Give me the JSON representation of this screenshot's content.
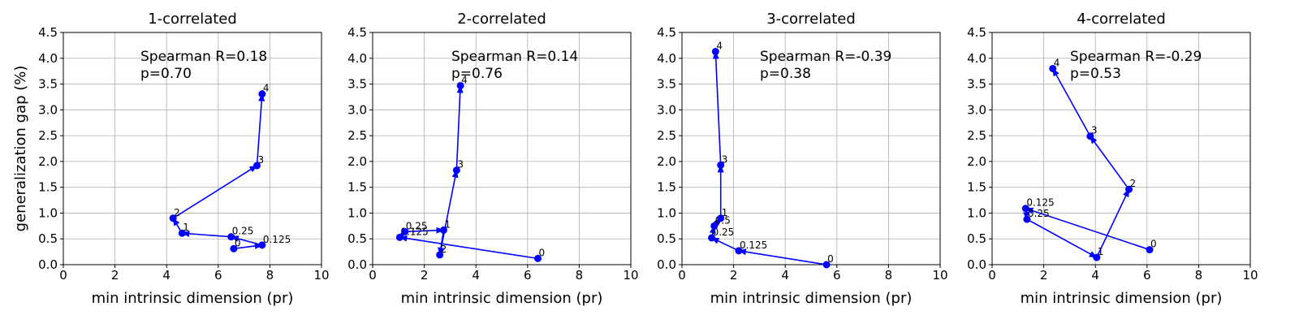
{
  "chart_data": [
    {
      "type": "line",
      "title": "1-correlated",
      "xlabel": "min intrinsic dimension (pr)",
      "ylabel": "generalization gap (%)",
      "xlim": [
        0,
        10
      ],
      "ylim": [
        0,
        4.5
      ],
      "xticks": [
        0,
        2,
        4,
        6,
        8,
        10
      ],
      "yticks": [
        0.0,
        0.5,
        1.0,
        1.5,
        2.0,
        2.5,
        3.0,
        3.5,
        4.0,
        4.5
      ],
      "grid": true,
      "annotation": [
        "Spearman R=0.18",
        "p=0.70"
      ],
      "series": [
        {
          "color": "#0000ff",
          "points": [
            {
              "label": "0",
              "x": 6.6,
              "y": 0.31
            },
            {
              "label": "0.125",
              "x": 7.7,
              "y": 0.38
            },
            {
              "label": "0.25",
              "x": 6.5,
              "y": 0.54
            },
            {
              "label": "1",
              "x": 4.6,
              "y": 0.61
            },
            {
              "label": "2",
              "x": 4.25,
              "y": 0.9
            },
            {
              "label": "3",
              "x": 7.5,
              "y": 1.92
            },
            {
              "label": "4",
              "x": 7.7,
              "y": 3.31
            }
          ]
        }
      ]
    },
    {
      "type": "line",
      "title": "2-correlated",
      "xlabel": "min intrinsic dimension (pr)",
      "ylabel": "",
      "xlim": [
        0,
        10
      ],
      "ylim": [
        0,
        4.5
      ],
      "xticks": [
        0,
        2,
        4,
        6,
        8,
        10
      ],
      "yticks": [
        0.0,
        0.5,
        1.0,
        1.5,
        2.0,
        2.5,
        3.0,
        3.5,
        4.0,
        4.5
      ],
      "grid": true,
      "annotation": [
        "Spearman R=0.14",
        "p=0.76"
      ],
      "series": [
        {
          "color": "#0000ff",
          "points": [
            {
              "label": "0",
              "x": 6.4,
              "y": 0.12
            },
            {
              "label": "0.125",
              "x": 1.05,
              "y": 0.53
            },
            {
              "label": "0.25",
              "x": 1.25,
              "y": 0.64
            },
            {
              "label": "1",
              "x": 2.75,
              "y": 0.67
            },
            {
              "label": "2",
              "x": 2.6,
              "y": 0.19
            },
            {
              "label": "3",
              "x": 3.25,
              "y": 1.83
            },
            {
              "label": "4",
              "x": 3.4,
              "y": 3.47
            }
          ]
        }
      ]
    },
    {
      "type": "line",
      "title": "3-correlated",
      "xlabel": "min intrinsic dimension (pr)",
      "ylabel": "",
      "xlim": [
        0,
        10
      ],
      "ylim": [
        0,
        4.5
      ],
      "xticks": [
        0,
        2,
        4,
        6,
        8,
        10
      ],
      "yticks": [
        0.0,
        0.5,
        1.0,
        1.5,
        2.0,
        2.5,
        3.0,
        3.5,
        4.0,
        4.5
      ],
      "grid": true,
      "annotation": [
        "Spearman R=-0.39",
        "p=0.38"
      ],
      "series": [
        {
          "color": "#0000ff",
          "points": [
            {
              "label": "0",
              "x": 5.6,
              "y": 0.0
            },
            {
              "label": "0.125",
              "x": 2.2,
              "y": 0.27
            },
            {
              "label": "0.25",
              "x": 1.15,
              "y": 0.52
            },
            {
              "label": "0.5",
              "x": 1.25,
              "y": 0.75
            },
            {
              "label": "1",
              "x": 1.5,
              "y": 0.9
            },
            {
              "label": "3",
              "x": 1.5,
              "y": 1.93
            },
            {
              "label": "4",
              "x": 1.3,
              "y": 4.13
            }
          ]
        }
      ]
    },
    {
      "type": "line",
      "title": "4-correlated",
      "xlabel": "min intrinsic dimension (pr)",
      "ylabel": "",
      "xlim": [
        0,
        10
      ],
      "ylim": [
        0,
        4.5
      ],
      "xticks": [
        0,
        2,
        4,
        6,
        8,
        10
      ],
      "yticks": [
        0.0,
        0.5,
        1.0,
        1.5,
        2.0,
        2.5,
        3.0,
        3.5,
        4.0,
        4.5
      ],
      "grid": true,
      "annotation": [
        "Spearman R=-0.29",
        "p=0.53"
      ],
      "series": [
        {
          "color": "#0000ff",
          "points": [
            {
              "label": "0",
              "x": 6.1,
              "y": 0.29
            },
            {
              "label": "0.125",
              "x": 1.3,
              "y": 1.09
            },
            {
              "label": "0.25",
              "x": 1.35,
              "y": 0.88
            },
            {
              "label": "1",
              "x": 4.05,
              "y": 0.14
            },
            {
              "label": "2",
              "x": 5.3,
              "y": 1.46
            },
            {
              "label": "3",
              "x": 3.8,
              "y": 2.49
            },
            {
              "label": "4",
              "x": 2.35,
              "y": 3.8
            }
          ]
        }
      ]
    }
  ]
}
